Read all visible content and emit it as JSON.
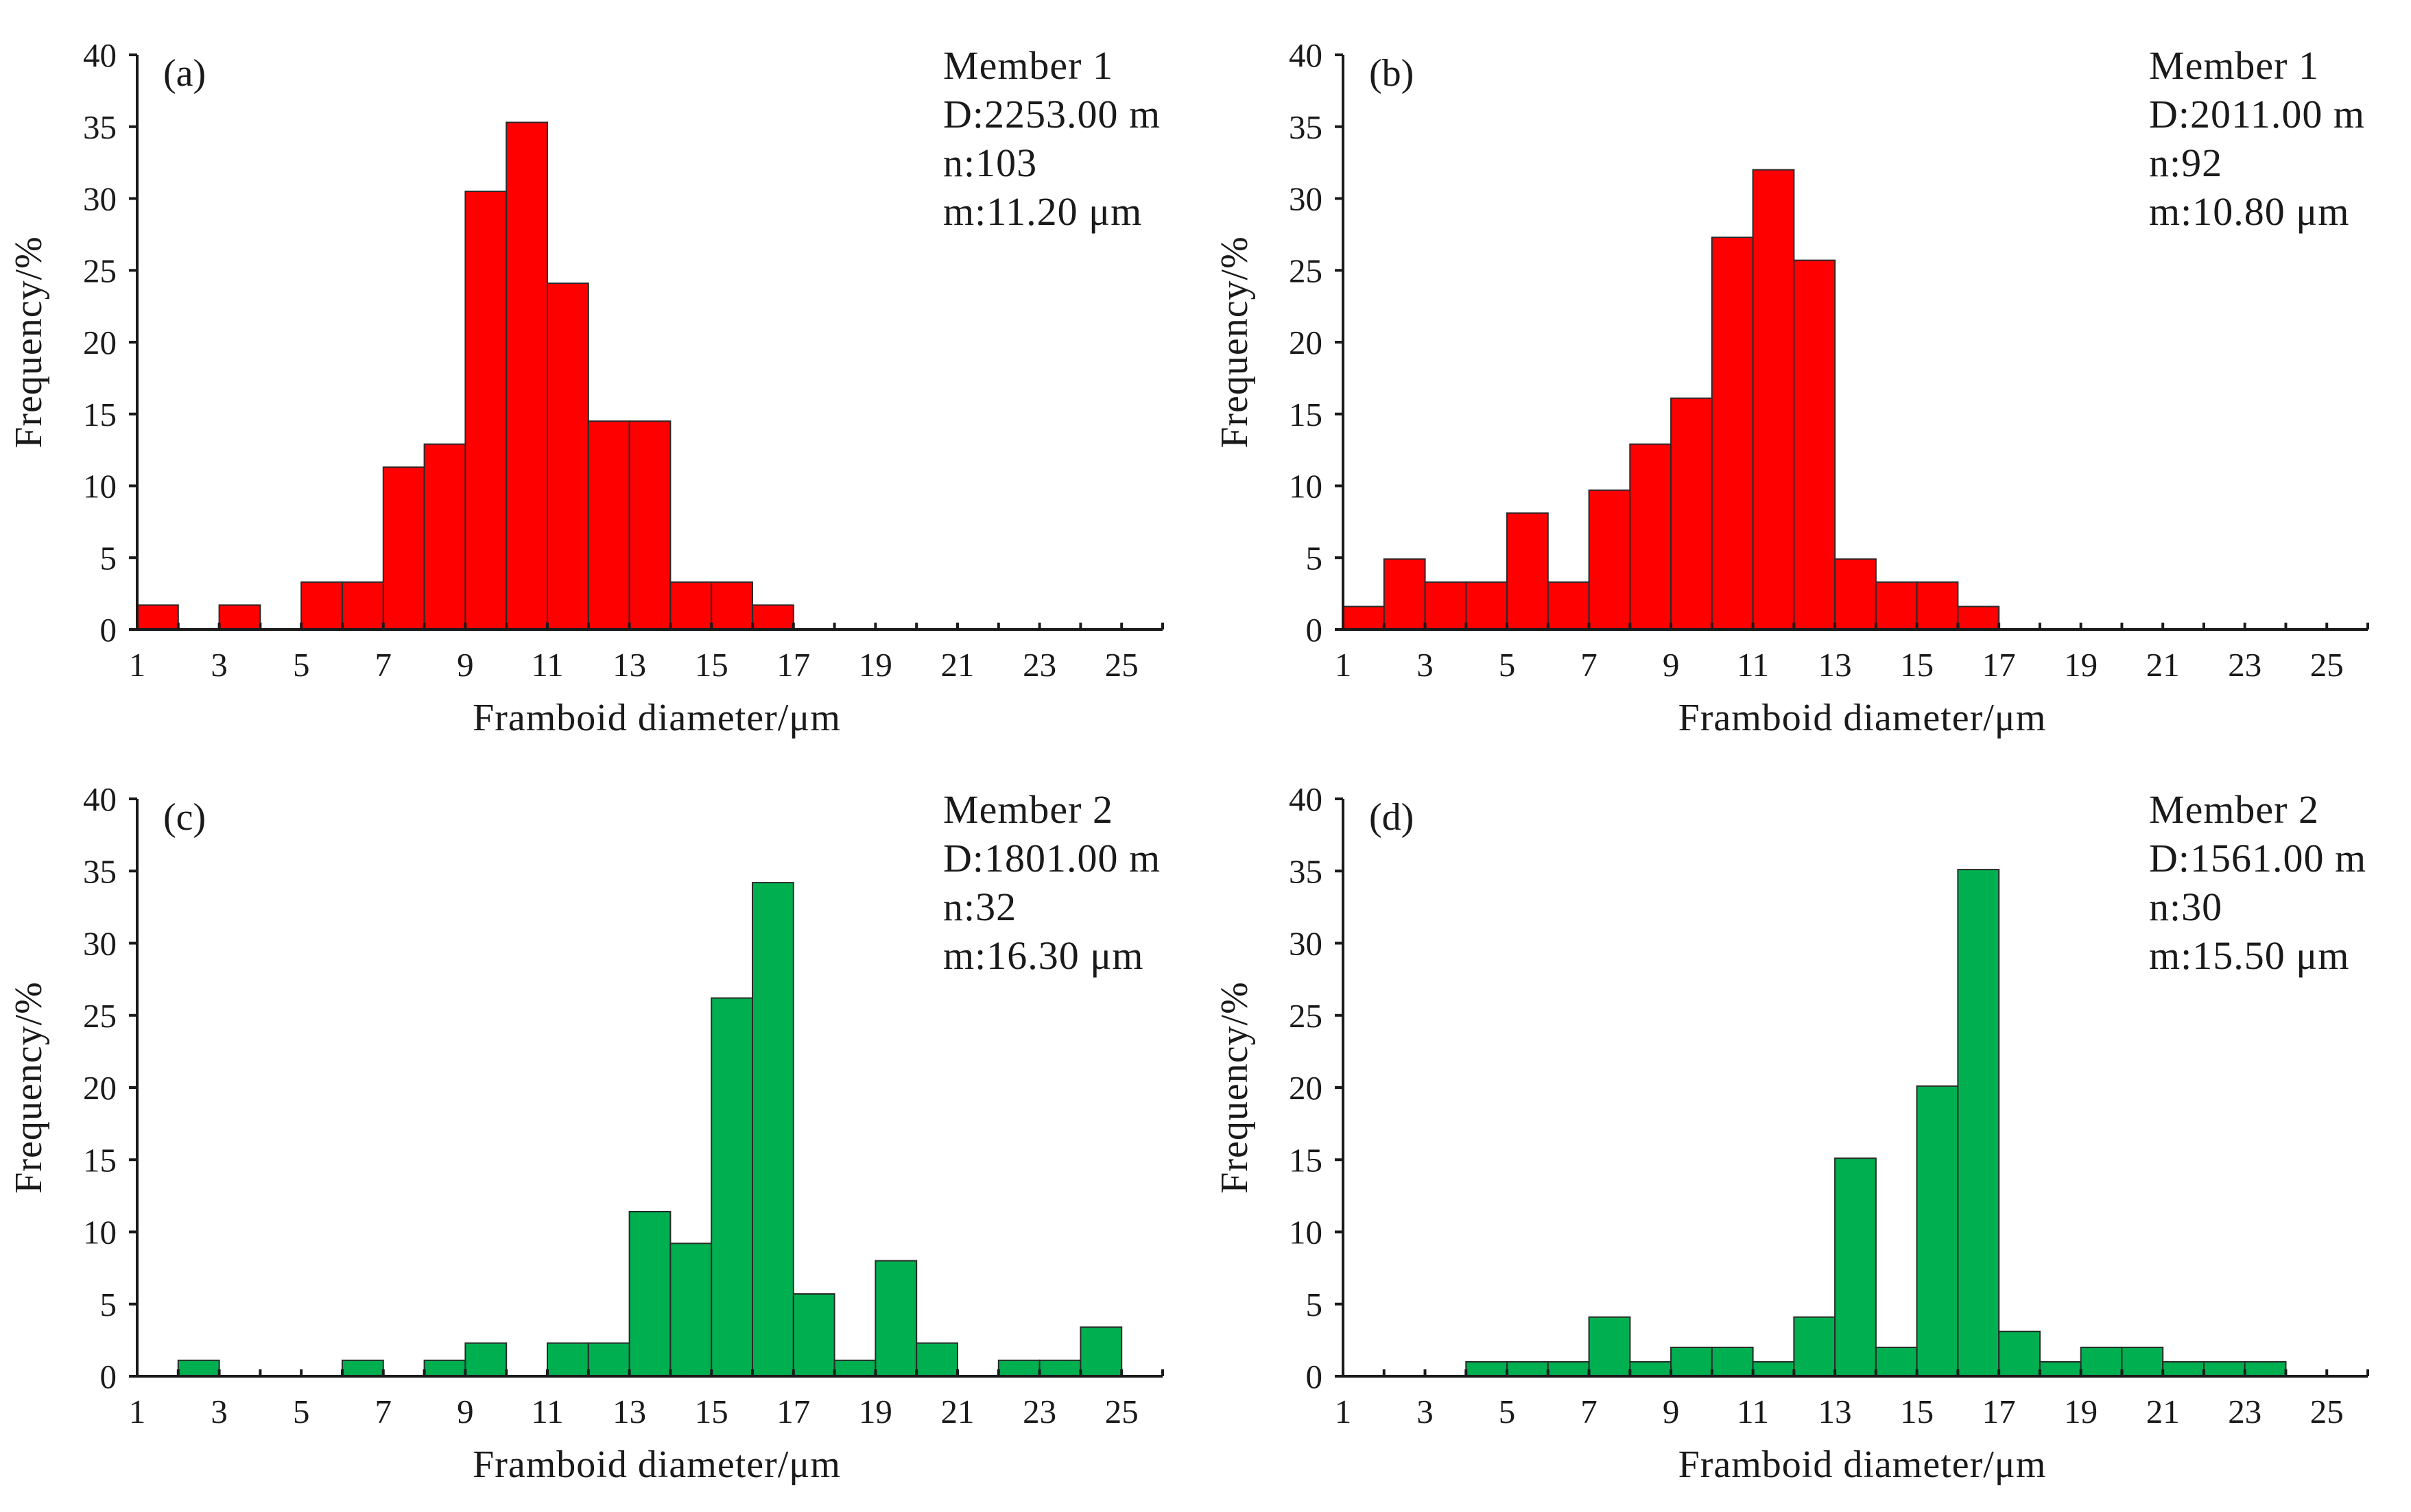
{
  "figure": {
    "colors": {
      "member1": "#ff0000",
      "member2": "#00b050"
    }
  },
  "chart_data": [
    {
      "id": "a",
      "type": "bar",
      "panel_label": "(a)",
      "info": {
        "member": "Member 1",
        "depth": "D:2253.00 m",
        "count": "n:103",
        "mean": "m:11.20 μm"
      },
      "xlabel": "Framboid diameter/μm",
      "ylabel": "Frequency/%",
      "xlim": [
        1,
        26
      ],
      "ylim": [
        0,
        40
      ],
      "xticks": [
        1,
        3,
        5,
        7,
        9,
        11,
        13,
        15,
        17,
        19,
        21,
        23,
        25
      ],
      "yticks": [
        0,
        5,
        10,
        15,
        20,
        25,
        30,
        35,
        40
      ],
      "color": "#ff0000",
      "bins": [
        [
          1,
          2
        ],
        [
          2,
          3
        ],
        [
          3,
          4
        ],
        [
          4,
          5
        ],
        [
          5,
          6
        ],
        [
          6,
          7
        ],
        [
          7,
          8
        ],
        [
          8,
          9
        ],
        [
          9,
          10
        ],
        [
          10,
          11
        ],
        [
          11,
          12
        ],
        [
          12,
          13
        ],
        [
          13,
          14
        ],
        [
          14,
          15
        ],
        [
          15,
          16
        ],
        [
          16,
          17
        ],
        [
          17,
          18
        ],
        [
          18,
          19
        ],
        [
          19,
          20
        ],
        [
          20,
          21
        ],
        [
          21,
          22
        ],
        [
          22,
          23
        ],
        [
          23,
          24
        ],
        [
          24,
          25
        ],
        [
          25,
          26
        ]
      ],
      "values": [
        1.7,
        0,
        1.7,
        0,
        3.3,
        3.3,
        11.3,
        12.9,
        30.5,
        35.3,
        24.1,
        14.5,
        14.5,
        3.3,
        3.3,
        1.7,
        0,
        0,
        0,
        0,
        0,
        0,
        0,
        0,
        0
      ]
    },
    {
      "id": "b",
      "type": "bar",
      "panel_label": "(b)",
      "info": {
        "member": "Member 1",
        "depth": "D:2011.00 m",
        "count": "n:92",
        "mean": "m:10.80 μm"
      },
      "xlabel": "Framboid diameter/μm",
      "ylabel": "Frequency/%",
      "xlim": [
        1,
        26
      ],
      "ylim": [
        0,
        40
      ],
      "xticks": [
        1,
        3,
        5,
        7,
        9,
        11,
        13,
        15,
        17,
        19,
        21,
        23,
        25
      ],
      "yticks": [
        0,
        5,
        10,
        15,
        20,
        25,
        30,
        35,
        40
      ],
      "color": "#ff0000",
      "bins": [
        [
          1,
          2
        ],
        [
          2,
          3
        ],
        [
          3,
          4
        ],
        [
          4,
          5
        ],
        [
          5,
          6
        ],
        [
          6,
          7
        ],
        [
          7,
          8
        ],
        [
          8,
          9
        ],
        [
          9,
          10
        ],
        [
          10,
          11
        ],
        [
          11,
          12
        ],
        [
          12,
          13
        ],
        [
          13,
          14
        ],
        [
          14,
          15
        ],
        [
          15,
          16
        ],
        [
          16,
          17
        ],
        [
          17,
          18
        ],
        [
          18,
          19
        ],
        [
          19,
          20
        ],
        [
          20,
          21
        ],
        [
          21,
          22
        ],
        [
          22,
          23
        ],
        [
          23,
          24
        ],
        [
          24,
          25
        ],
        [
          25,
          26
        ]
      ],
      "values": [
        1.6,
        4.9,
        3.3,
        3.3,
        8.1,
        3.3,
        9.7,
        12.9,
        16.1,
        27.3,
        32.0,
        25.7,
        4.9,
        3.3,
        3.3,
        1.6,
        0,
        0,
        0,
        0,
        0,
        0,
        0,
        0,
        0
      ]
    },
    {
      "id": "c",
      "type": "bar",
      "panel_label": "(c)",
      "info": {
        "member": "Member 2",
        "depth": "D:1801.00 m",
        "count": "n:32",
        "mean": "m:16.30 μm"
      },
      "xlabel": "Framboid diameter/μm",
      "ylabel": "Frequency/%",
      "xlim": [
        1,
        26
      ],
      "ylim": [
        0,
        40
      ],
      "xticks": [
        1,
        3,
        5,
        7,
        9,
        11,
        13,
        15,
        17,
        19,
        21,
        23,
        25
      ],
      "yticks": [
        0,
        5,
        10,
        15,
        20,
        25,
        30,
        35,
        40
      ],
      "color": "#00b050",
      "bins": [
        [
          1,
          2
        ],
        [
          2,
          3
        ],
        [
          3,
          4
        ],
        [
          4,
          5
        ],
        [
          5,
          6
        ],
        [
          6,
          7
        ],
        [
          7,
          8
        ],
        [
          8,
          9
        ],
        [
          9,
          10
        ],
        [
          10,
          11
        ],
        [
          11,
          12
        ],
        [
          12,
          13
        ],
        [
          13,
          14
        ],
        [
          14,
          15
        ],
        [
          15,
          16
        ],
        [
          16,
          17
        ],
        [
          17,
          18
        ],
        [
          18,
          19
        ],
        [
          19,
          20
        ],
        [
          20,
          21
        ],
        [
          21,
          22
        ],
        [
          22,
          23
        ],
        [
          23,
          24
        ],
        [
          24,
          25
        ],
        [
          25,
          26
        ]
      ],
      "values": [
        0,
        1.1,
        0,
        0,
        0,
        1.1,
        0,
        1.1,
        2.3,
        0,
        2.3,
        2.3,
        11.4,
        9.2,
        26.2,
        34.2,
        5.7,
        1.1,
        8.0,
        2.3,
        0,
        1.1,
        1.1,
        3.4,
        0
      ]
    },
    {
      "id": "d",
      "type": "bar",
      "panel_label": "(d)",
      "info": {
        "member": "Member 2",
        "depth": "D:1561.00 m",
        "count": "n:30",
        "mean": "m:15.50 μm"
      },
      "xlabel": "Framboid diameter/μm",
      "ylabel": "Frequency/%",
      "xlim": [
        1,
        26
      ],
      "ylim": [
        0,
        40
      ],
      "xticks": [
        1,
        3,
        5,
        7,
        9,
        11,
        13,
        15,
        17,
        19,
        21,
        23,
        25
      ],
      "yticks": [
        0,
        5,
        10,
        15,
        20,
        25,
        30,
        35,
        40
      ],
      "color": "#00b050",
      "bins": [
        [
          1,
          2
        ],
        [
          2,
          3
        ],
        [
          3,
          4
        ],
        [
          4,
          5
        ],
        [
          5,
          6
        ],
        [
          6,
          7
        ],
        [
          7,
          8
        ],
        [
          8,
          9
        ],
        [
          9,
          10
        ],
        [
          10,
          11
        ],
        [
          11,
          12
        ],
        [
          12,
          13
        ],
        [
          13,
          14
        ],
        [
          14,
          15
        ],
        [
          15,
          16
        ],
        [
          16,
          17
        ],
        [
          17,
          18
        ],
        [
          18,
          19
        ],
        [
          19,
          20
        ],
        [
          20,
          21
        ],
        [
          21,
          22
        ],
        [
          22,
          23
        ],
        [
          23,
          24
        ],
        [
          24,
          25
        ],
        [
          25,
          26
        ]
      ],
      "values": [
        0,
        0,
        0,
        1.0,
        1.0,
        1.0,
        4.1,
        1.0,
        2.0,
        2.0,
        1.0,
        4.1,
        15.1,
        2.0,
        20.1,
        35.1,
        3.1,
        1.0,
        2.0,
        2.0,
        1.0,
        1.0,
        1.0,
        0,
        0
      ]
    }
  ]
}
